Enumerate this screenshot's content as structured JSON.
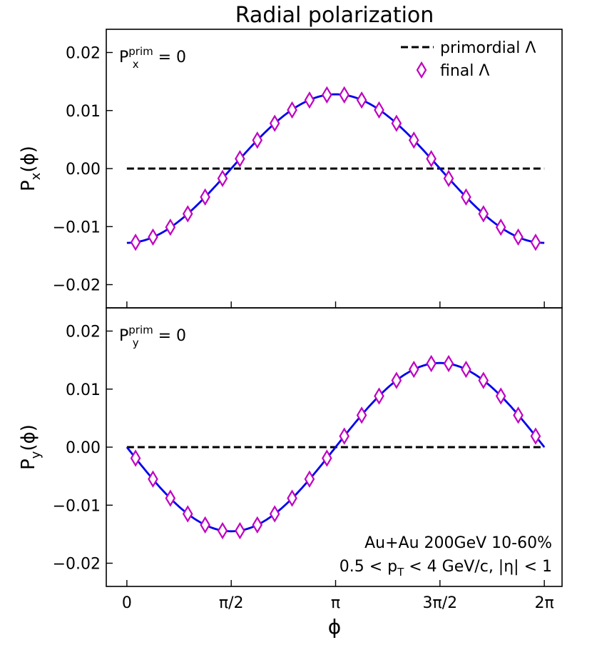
{
  "chart_data": {
    "type": "line",
    "title": "Radial polarization",
    "xlabel": "ϕ",
    "x_ticks": [
      {
        "value": 0,
        "label": "0"
      },
      {
        "value": 1.5708,
        "label": "π/2"
      },
      {
        "value": 3.1416,
        "label": "π"
      },
      {
        "value": 4.7124,
        "label": "3π/2"
      },
      {
        "value": 6.2832,
        "label": "2π"
      }
    ],
    "xlim": [
      -0.31,
      6.55
    ],
    "legend": {
      "placement": "top-right",
      "entries": [
        {
          "label": "primordial Λ",
          "style": "dashed-line"
        },
        {
          "label": "final Λ",
          "style": "diamond-marker"
        }
      ]
    },
    "colors": {
      "curve": "#0000ee",
      "marker": "#c000c0",
      "primordial": "#000000"
    },
    "annotation": {
      "line1": "Au+Au 200GeV 10-60%",
      "line2": "0.5 < p",
      "line2_sub": "T",
      "line2_rest": " < 4 GeV/c, |η| < 1"
    },
    "panels": [
      {
        "id": "px",
        "ylabel": "P",
        "ylabel_sub": "x",
        "ylabel_tail": "(ϕ)",
        "ylim": [
          -0.024,
          0.024
        ],
        "y_ticks": [
          {
            "value": -0.02,
            "label": "−0.02"
          },
          {
            "value": -0.01,
            "label": "−0.01"
          },
          {
            "value": 0.0,
            "label": "0.00"
          },
          {
            "value": 0.01,
            "label": "0.01"
          },
          {
            "value": 0.02,
            "label": "0.02"
          }
        ],
        "condition": {
          "P": "P",
          "sup": "prim",
          "sub": "x",
          "rest": " = 0"
        },
        "series": [
          {
            "name": "primordial Λ",
            "x": [
              0,
              6.2832
            ],
            "y": [
              0.0,
              0.0
            ]
          },
          {
            "name": "final Λ curve",
            "function": "-0.0128*cos(x)",
            "xrange": [
              0,
              6.2832
            ]
          },
          {
            "name": "final Λ",
            "x": [
              0.1309,
              0.3927,
              0.6545,
              0.9163,
              1.1781,
              1.4399,
              1.7017,
              1.9635,
              2.2253,
              2.4871,
              2.7489,
              3.0107,
              3.2725,
              3.5343,
              3.7961,
              4.0579,
              4.3197,
              4.5815,
              4.8433,
              5.1051,
              5.3669,
              5.6287,
              5.8905,
              6.1523
            ],
            "y": [
              -0.0127,
              -0.0118,
              -0.0101,
              -0.0078,
              -0.0049,
              -0.0017,
              0.0017,
              0.0049,
              0.0078,
              0.0101,
              0.0118,
              0.0127,
              0.0127,
              0.0118,
              0.0101,
              0.0078,
              0.0049,
              0.0017,
              -0.0017,
              -0.0049,
              -0.0078,
              -0.0101,
              -0.0118,
              -0.0127
            ]
          }
        ]
      },
      {
        "id": "py",
        "ylabel": "P",
        "ylabel_sub": "y",
        "ylabel_tail": "(ϕ)",
        "ylim": [
          -0.024,
          0.024
        ],
        "y_ticks": [
          {
            "value": -0.02,
            "label": "−0.02"
          },
          {
            "value": -0.01,
            "label": "−0.01"
          },
          {
            "value": 0.0,
            "label": "0.00"
          },
          {
            "value": 0.01,
            "label": "0.01"
          },
          {
            "value": 0.02,
            "label": "0.02"
          }
        ],
        "condition": {
          "P": "P",
          "sup": "prim",
          "sub": "y",
          "rest": " = 0"
        },
        "series": [
          {
            "name": "primordial Λ",
            "x": [
              0,
              6.2832
            ],
            "y": [
              0.0,
              0.0
            ]
          },
          {
            "name": "final Λ curve",
            "function": "-0.0145*sin(x)",
            "xrange": [
              0,
              6.2832
            ]
          },
          {
            "name": "final Λ",
            "x": [
              0.1309,
              0.3927,
              0.6545,
              0.9163,
              1.1781,
              1.4399,
              1.7017,
              1.9635,
              2.2253,
              2.4871,
              2.7489,
              3.0107,
              3.2725,
              3.5343,
              3.7961,
              4.0579,
              4.3197,
              4.5815,
              4.8433,
              5.1051,
              5.3669,
              5.6287,
              5.8905,
              6.1523
            ],
            "y": [
              -0.0019,
              -0.0055,
              -0.0088,
              -0.0115,
              -0.0134,
              -0.0144,
              -0.0144,
              -0.0134,
              -0.0115,
              -0.0088,
              -0.0055,
              -0.0019,
              0.0019,
              0.0055,
              0.0088,
              0.0115,
              0.0134,
              0.0144,
              0.0144,
              0.0134,
              0.0115,
              0.0088,
              0.0055,
              0.0019
            ]
          }
        ]
      }
    ]
  }
}
